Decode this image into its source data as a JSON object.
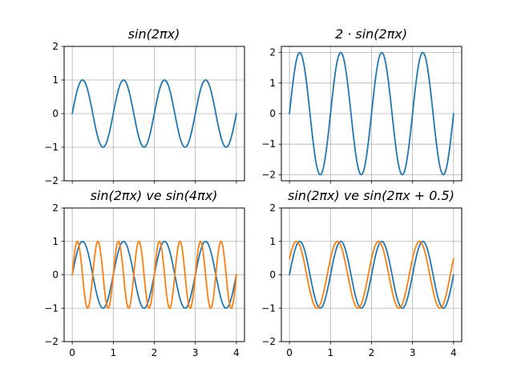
{
  "chart_data": [
    {
      "type": "line",
      "title": "sin(2πx)",
      "x_range": [
        0,
        4
      ],
      "ylim": [
        -2,
        2
      ],
      "x_ticks": [],
      "x_tick_labels": [],
      "y_ticks": [
        -2,
        -1,
        0,
        1,
        2
      ],
      "y_tick_labels": [
        "−2",
        "−1",
        "0",
        "1",
        "2"
      ],
      "grid": true,
      "series": [
        {
          "color": "#1f77b4",
          "amplitude": 1,
          "frequency": 1,
          "phase": 0
        }
      ]
    },
    {
      "type": "line",
      "title": "2 · sin(2πx)",
      "x_range": [
        0,
        4
      ],
      "ylim": [
        -2.2,
        2.2
      ],
      "x_ticks": [],
      "x_tick_labels": [],
      "y_ticks": [
        -2,
        -1,
        0,
        1,
        2
      ],
      "y_tick_labels": [
        "−2",
        "−1",
        "0",
        "1",
        "2"
      ],
      "grid": true,
      "series": [
        {
          "color": "#1f77b4",
          "amplitude": 2,
          "frequency": 1,
          "phase": 0
        }
      ]
    },
    {
      "type": "line",
      "title": "sin(2πx) ve sin(4πx)",
      "x_range": [
        0,
        4
      ],
      "ylim": [
        -2,
        2
      ],
      "x_ticks": [
        0,
        1,
        2,
        3,
        4
      ],
      "x_tick_labels": [
        "0",
        "1",
        "2",
        "3",
        "4"
      ],
      "y_ticks": [
        -2,
        -1,
        0,
        1,
        2
      ],
      "y_tick_labels": [
        "−2",
        "−1",
        "0",
        "1",
        "2"
      ],
      "grid": true,
      "series": [
        {
          "color": "#1f77b4",
          "amplitude": 1,
          "frequency": 1,
          "phase": 0
        },
        {
          "color": "#ff7f0e",
          "amplitude": 1,
          "frequency": 2,
          "phase": 0
        }
      ]
    },
    {
      "type": "line",
      "title": "sin(2πx) ve sin(2πx + 0.5)",
      "x_range": [
        0,
        4
      ],
      "ylim": [
        -2,
        2
      ],
      "x_ticks": [
        0,
        1,
        2,
        3,
        4
      ],
      "x_tick_labels": [
        "0",
        "1",
        "2",
        "3",
        "4"
      ],
      "y_ticks": [
        -2,
        -1,
        0,
        1,
        2
      ],
      "y_tick_labels": [
        "−2",
        "−1",
        "0",
        "1",
        "2"
      ],
      "grid": true,
      "series": [
        {
          "color": "#1f77b4",
          "amplitude": 1,
          "frequency": 1,
          "phase": 0
        },
        {
          "color": "#ff7f0e",
          "amplitude": 1,
          "frequency": 1,
          "phase": 0.5
        }
      ]
    }
  ]
}
